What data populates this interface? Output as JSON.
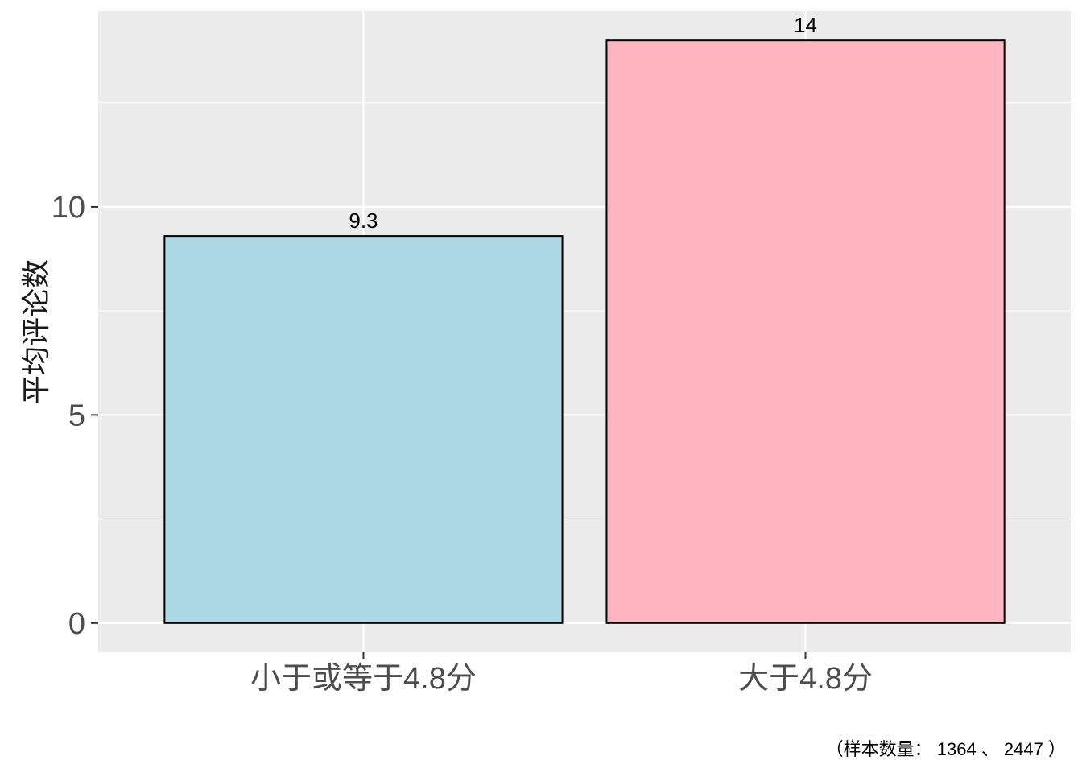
{
  "chart_data": {
    "type": "bar",
    "categories": [
      "小于或等于4.8分",
      "大于4.8分"
    ],
    "values": [
      9.3,
      14
    ],
    "data_labels": [
      "9.3",
      "14"
    ],
    "colors": [
      "#add8e6",
      "#ffb6c1"
    ],
    "bar_border_color": "#000000",
    "panel_background": "#ebebeb",
    "grid_color": "#ffffff",
    "title": "",
    "xlabel": "",
    "ylabel": "平均评论数",
    "ylim": [
      -0.7,
      14.7
    ],
    "yticks": [
      0,
      5,
      10
    ],
    "ytick_labels": [
      "0",
      "5",
      "10"
    ],
    "grid": true,
    "legend": "none",
    "caption": "（样本数量： 1364 、 2447 ）"
  }
}
